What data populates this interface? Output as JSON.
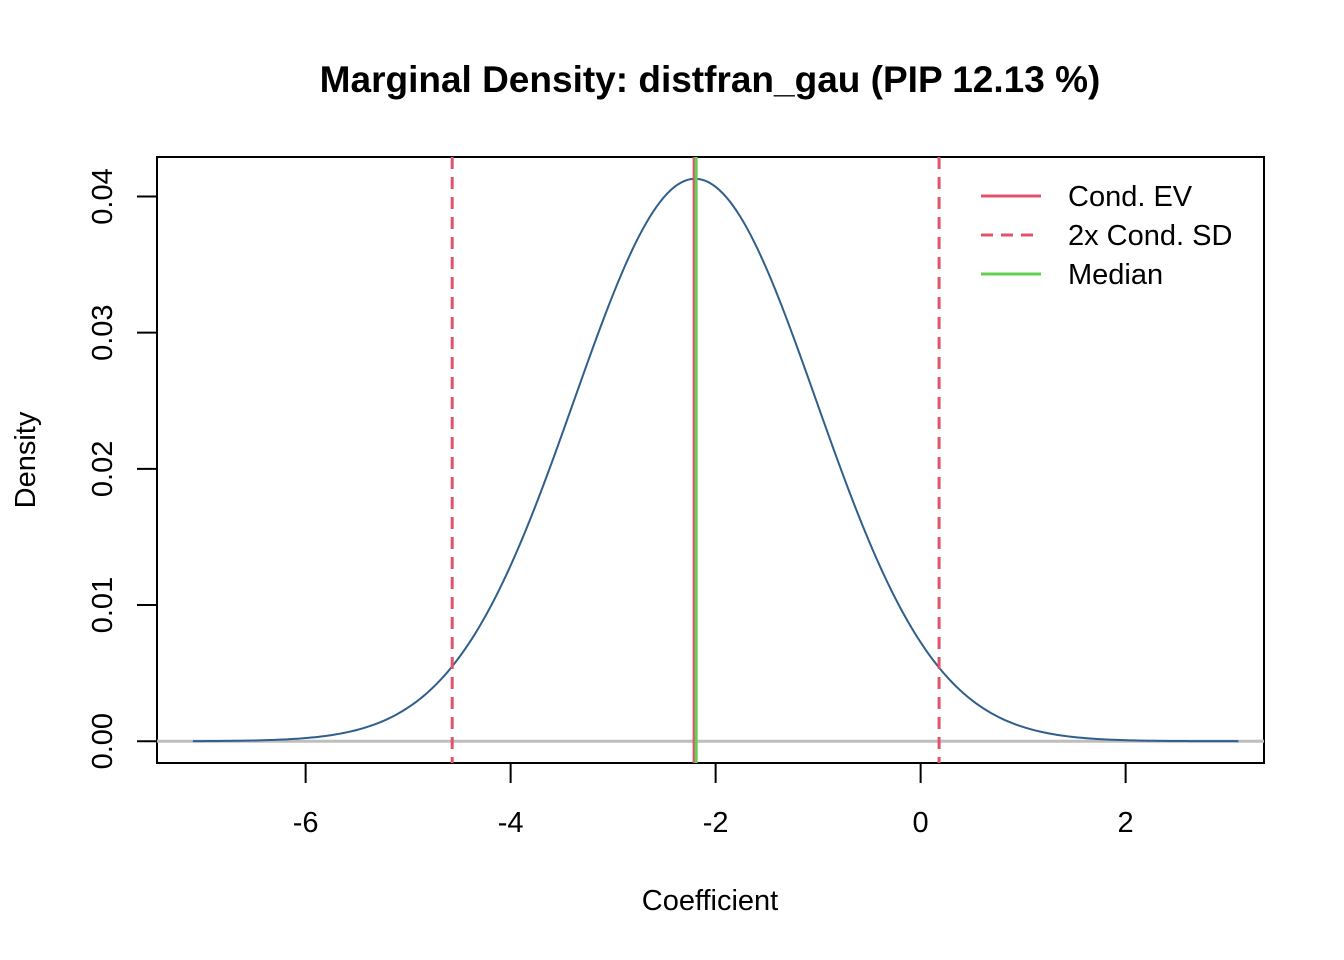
{
  "chart_data": {
    "type": "line",
    "title": "Marginal Density: distfran_gau (PIP 12.13 %)",
    "xlabel": "Coefficient",
    "ylabel": "Density",
    "xlim": [
      -7.45,
      3.35
    ],
    "ylim": [
      -0.0016,
      0.0429
    ],
    "x_ticks": [
      -6,
      -4,
      -2,
      0,
      2
    ],
    "x_tick_labels": [
      "-6",
      "-4",
      "-2",
      "0",
      "2"
    ],
    "y_ticks": [
      0.0,
      0.01,
      0.02,
      0.03,
      0.04
    ],
    "y_tick_labels": [
      "0.00",
      "0.01",
      "0.02",
      "0.03",
      "0.04"
    ],
    "density": {
      "name": "",
      "color": "#2F5F8A",
      "mean": -2.2,
      "sd": 1.18,
      "peak": 0.0413,
      "x_range": [
        -7.1,
        3.1
      ]
    },
    "baseline": {
      "y": 0,
      "color": "#BEBEBE"
    },
    "vlines": [
      {
        "name": "Cond. EV",
        "x": -2.21,
        "color": "#DF536B",
        "style": "solid"
      },
      {
        "name": "2x Cond. SD",
        "x": -4.57,
        "color": "#DF536B",
        "style": "dashed"
      },
      {
        "name": "2x Cond. SD",
        "x": 0.18,
        "color": "#DF536B",
        "style": "dashed"
      },
      {
        "name": "Median",
        "x": -2.19,
        "color": "#61D04F",
        "style": "solid"
      }
    ],
    "legend": {
      "position": "top-right",
      "entries": [
        {
          "label": "Cond. EV",
          "color": "#DF536B",
          "style": "solid"
        },
        {
          "label": "2x Cond. SD",
          "color": "#DF536B",
          "style": "dashed"
        },
        {
          "label": "Median",
          "color": "#61D04F",
          "style": "solid"
        }
      ]
    },
    "grid": false
  }
}
